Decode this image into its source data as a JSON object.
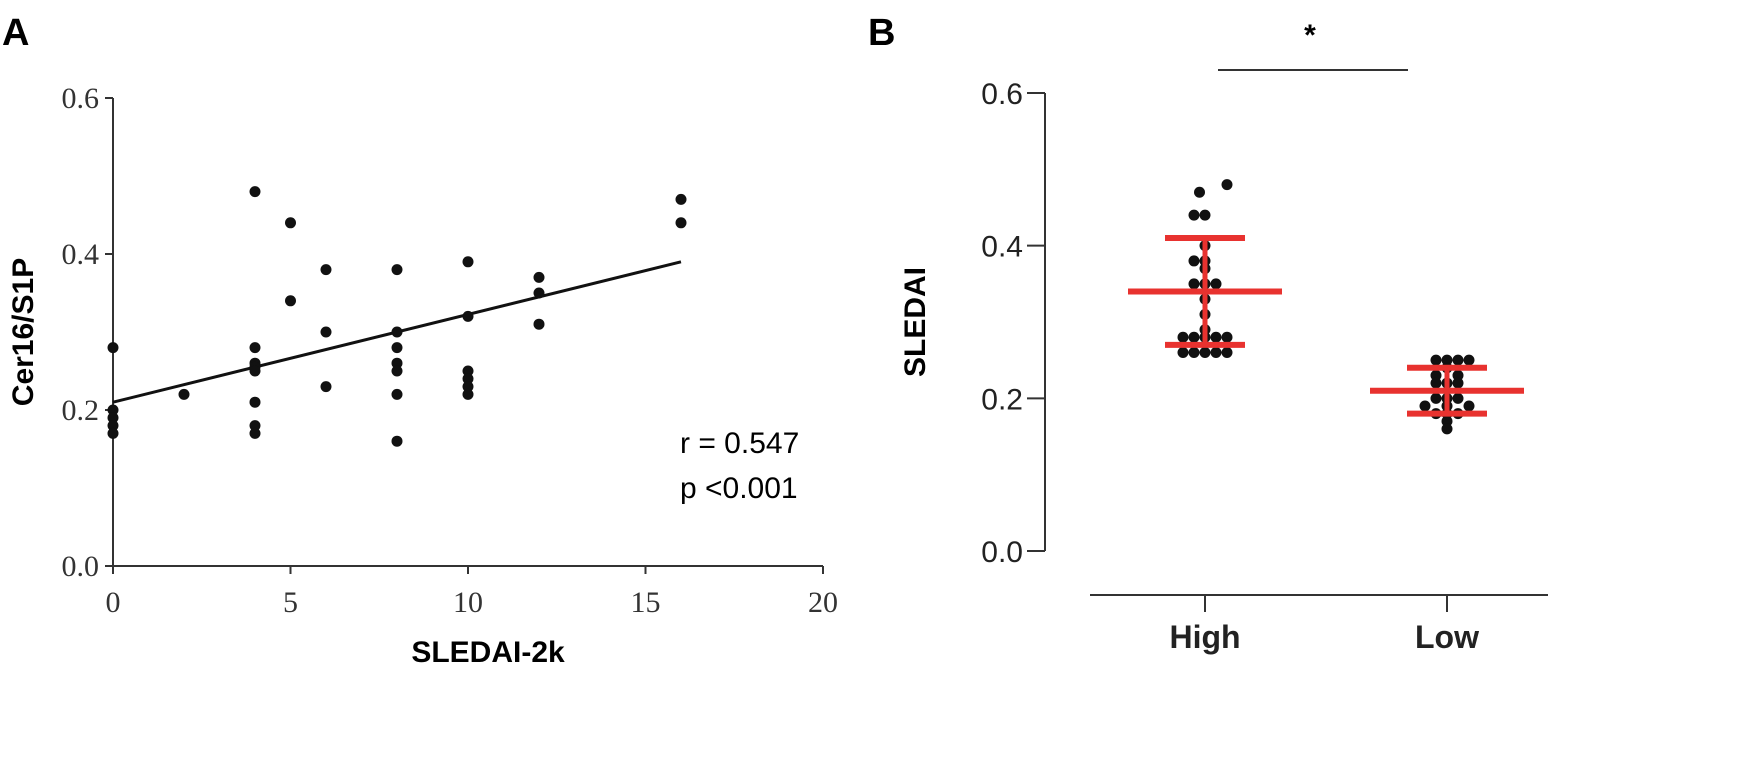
{
  "panels": {
    "a_label": "A",
    "b_label": "B"
  },
  "colors": {
    "points": "#111111",
    "fit_line": "#111111",
    "summary_bars": "#e8322f",
    "axis": "#333333"
  },
  "chart_data": [
    {
      "panel": "A",
      "type": "scatter",
      "title": "",
      "xlabel": "SLEDAI-2k",
      "ylabel": "Cer16/S1P",
      "xlim": [
        0,
        20
      ],
      "ylim": [
        0.0,
        0.6
      ],
      "xticks": [
        0,
        5,
        10,
        15,
        20
      ],
      "xtick_labels": [
        "0",
        "5",
        "10",
        "15",
        "20"
      ],
      "yticks": [
        0.0,
        0.2,
        0.4,
        0.6
      ],
      "ytick_labels": [
        "0.0",
        "0.2",
        "0.4",
        "0.6"
      ],
      "grid": false,
      "points": [
        [
          0,
          0.28
        ],
        [
          0,
          0.2
        ],
        [
          0,
          0.19
        ],
        [
          0,
          0.18
        ],
        [
          0,
          0.17
        ],
        [
          2,
          0.22
        ],
        [
          4,
          0.48
        ],
        [
          4,
          0.28
        ],
        [
          4,
          0.26
        ],
        [
          4,
          0.255
        ],
        [
          4,
          0.25
        ],
        [
          4,
          0.21
        ],
        [
          4,
          0.18
        ],
        [
          4,
          0.17
        ],
        [
          5,
          0.44
        ],
        [
          5,
          0.34
        ],
        [
          6,
          0.38
        ],
        [
          6,
          0.3
        ],
        [
          6,
          0.23
        ],
        [
          8,
          0.38
        ],
        [
          8,
          0.3
        ],
        [
          8,
          0.28
        ],
        [
          8,
          0.26
        ],
        [
          8,
          0.25
        ],
        [
          8,
          0.22
        ],
        [
          8,
          0.16
        ],
        [
          10,
          0.39
        ],
        [
          10,
          0.32
        ],
        [
          10,
          0.25
        ],
        [
          10,
          0.24
        ],
        [
          10,
          0.23
        ],
        [
          10,
          0.22
        ],
        [
          12,
          0.37
        ],
        [
          12,
          0.35
        ],
        [
          12,
          0.31
        ],
        [
          16,
          0.47
        ],
        [
          16,
          0.44
        ]
      ],
      "fit_line": {
        "x": [
          0,
          16
        ],
        "y": [
          0.21,
          0.39
        ]
      },
      "annotations": [
        "r = 0.547",
        "p <0.001"
      ]
    },
    {
      "panel": "B",
      "type": "scatter",
      "title": "",
      "xlabel": "",
      "ylabel": "SLEDAI",
      "ylim": [
        0.0,
        0.6
      ],
      "yticks": [
        0.0,
        0.2,
        0.4,
        0.6
      ],
      "ytick_labels": [
        "0.0",
        "0.2",
        "0.4",
        "0.6"
      ],
      "categories": [
        "High",
        "Low"
      ],
      "groups": [
        {
          "category": "High",
          "mean": 0.34,
          "upper": 0.41,
          "lower": 0.27,
          "points": [
            {
              "y": 0.48,
              "dx": 4
            },
            {
              "y": 0.47,
              "dx": -1
            },
            {
              "y": 0.44,
              "dx": -2
            },
            {
              "y": 0.44,
              "dx": 0
            },
            {
              "y": 0.4,
              "dx": 0
            },
            {
              "y": 0.38,
              "dx": -2
            },
            {
              "y": 0.38,
              "dx": 0
            },
            {
              "y": 0.37,
              "dx": 0
            },
            {
              "y": 0.35,
              "dx": -2
            },
            {
              "y": 0.35,
              "dx": 0
            },
            {
              "y": 0.35,
              "dx": 2
            },
            {
              "y": 0.33,
              "dx": 0
            },
            {
              "y": 0.31,
              "dx": 0
            },
            {
              "y": 0.29,
              "dx": 0
            },
            {
              "y": 0.28,
              "dx": -4
            },
            {
              "y": 0.28,
              "dx": -2
            },
            {
              "y": 0.28,
              "dx": 0
            },
            {
              "y": 0.28,
              "dx": 2
            },
            {
              "y": 0.28,
              "dx": 4
            },
            {
              "y": 0.26,
              "dx": -4
            },
            {
              "y": 0.26,
              "dx": -2
            },
            {
              "y": 0.26,
              "dx": 0
            },
            {
              "y": 0.26,
              "dx": 2
            },
            {
              "y": 0.26,
              "dx": 4
            }
          ]
        },
        {
          "category": "Low",
          "mean": 0.21,
          "upper": 0.24,
          "lower": 0.18,
          "points": [
            {
              "y": 0.25,
              "dx": -2
            },
            {
              "y": 0.25,
              "dx": 0
            },
            {
              "y": 0.25,
              "dx": 2
            },
            {
              "y": 0.25,
              "dx": 4
            },
            {
              "y": 0.24,
              "dx": 0
            },
            {
              "y": 0.23,
              "dx": -2
            },
            {
              "y": 0.23,
              "dx": 2
            },
            {
              "y": 0.22,
              "dx": -2
            },
            {
              "y": 0.22,
              "dx": 0
            },
            {
              "y": 0.22,
              "dx": 2
            },
            {
              "y": 0.2,
              "dx": -2
            },
            {
              "y": 0.2,
              "dx": 0
            },
            {
              "y": 0.2,
              "dx": 2
            },
            {
              "y": 0.19,
              "dx": -4
            },
            {
              "y": 0.19,
              "dx": 0
            },
            {
              "y": 0.19,
              "dx": 4
            },
            {
              "y": 0.18,
              "dx": -2
            },
            {
              "y": 0.18,
              "dx": 0
            },
            {
              "y": 0.18,
              "dx": 2
            },
            {
              "y": 0.17,
              "dx": 0
            },
            {
              "y": 0.16,
              "dx": 0
            }
          ]
        }
      ],
      "significance": {
        "between": [
          "High",
          "Low"
        ],
        "label": "*"
      }
    }
  ]
}
